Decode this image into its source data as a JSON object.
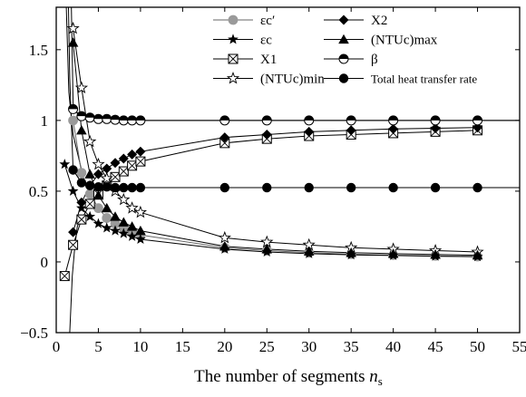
{
  "chart_data": {
    "type": "line",
    "xlabel": "The number of segments ",
    "xlabel_sub": "n",
    "xlabel_subscript": "s",
    "xlim": [
      0,
      55
    ],
    "ylim": [
      -0.5,
      1.8
    ],
    "xticks": [
      0,
      5,
      10,
      15,
      20,
      25,
      30,
      35,
      40,
      45,
      50,
      55
    ],
    "yticks": [
      -0.5,
      0,
      0.5,
      1,
      1.5
    ],
    "ytick_labels": [
      "−0.5",
      "0",
      "0.5",
      "1",
      "1.5"
    ],
    "grid": false,
    "legend_position": "top-right",
    "series": [
      {
        "name": "εc′",
        "marker": "circle-gray",
        "color": "#999999",
        "x": [
          2,
          3,
          4,
          5,
          6,
          7,
          8,
          9,
          10,
          20,
          25,
          30,
          35,
          40,
          45,
          50
        ],
        "y": [
          1.0,
          0.63,
          0.48,
          0.38,
          0.31,
          0.27,
          0.24,
          0.21,
          0.19,
          0.1,
          0.08,
          0.065,
          0.055,
          0.048,
          0.043,
          0.038
        ]
      },
      {
        "name": "εc",
        "marker": "star-filled",
        "color": "#000000",
        "x": [
          1,
          2,
          3,
          4,
          5,
          6,
          7,
          8,
          9,
          10,
          20,
          25,
          30,
          35,
          40,
          45,
          50
        ],
        "y": [
          0.69,
          0.5,
          0.38,
          0.32,
          0.27,
          0.24,
          0.22,
          0.2,
          0.18,
          0.16,
          0.09,
          0.07,
          0.058,
          0.05,
          0.045,
          0.04,
          0.037
        ]
      },
      {
        "name": "X1",
        "marker": "square-cross",
        "color": "#000000",
        "x": [
          1,
          2,
          3,
          4,
          5,
          6,
          7,
          8,
          9,
          10,
          20,
          25,
          30,
          35,
          40,
          45,
          50
        ],
        "y": [
          -0.1,
          0.12,
          0.3,
          0.41,
          0.48,
          0.54,
          0.6,
          0.64,
          0.68,
          0.71,
          0.84,
          0.87,
          0.89,
          0.9,
          0.91,
          0.92,
          0.93
        ]
      },
      {
        "name": "(NTUc)min",
        "marker": "star-open",
        "color": "#000000",
        "x": [
          2,
          3,
          4,
          5,
          6,
          7,
          8,
          9,
          10,
          20,
          25,
          30,
          35,
          40,
          45,
          50
        ],
        "y": [
          1.65,
          1.23,
          0.85,
          0.69,
          0.59,
          0.5,
          0.44,
          0.38,
          0.35,
          0.17,
          0.14,
          0.12,
          0.1,
          0.09,
          0.08,
          0.07
        ]
      },
      {
        "name": "X2",
        "marker": "diamond-filled",
        "color": "#000000",
        "x": [
          2,
          3,
          4,
          5,
          6,
          7,
          8,
          9,
          10,
          20,
          25,
          30,
          35,
          40,
          45,
          50
        ],
        "y": [
          0.21,
          0.42,
          0.54,
          0.62,
          0.66,
          0.7,
          0.73,
          0.76,
          0.78,
          0.88,
          0.9,
          0.92,
          0.93,
          0.94,
          0.945,
          0.95
        ]
      },
      {
        "name": "(NTUc)max",
        "marker": "triangle-filled",
        "color": "#000000",
        "x": [
          2,
          3,
          4,
          5,
          6,
          7,
          8,
          9,
          10,
          20,
          25,
          30,
          35,
          40,
          45,
          50
        ],
        "y": [
          1.55,
          0.93,
          0.62,
          0.47,
          0.38,
          0.32,
          0.28,
          0.25,
          0.22,
          0.11,
          0.09,
          0.075,
          0.065,
          0.058,
          0.052,
          0.047
        ]
      },
      {
        "name": "β",
        "marker": "circle-half",
        "color": "#000000",
        "x": [
          2,
          3,
          4,
          5,
          6,
          7,
          8,
          9,
          10,
          20,
          25,
          30,
          35,
          40,
          45,
          50
        ],
        "y": [
          1.08,
          1.03,
          1.02,
          1.01,
          1.01,
          1.005,
          1.0,
          1.0,
          1.0,
          1.0,
          1.0,
          1.0,
          1.0,
          1.0,
          1.0,
          1.0
        ]
      },
      {
        "name": "Total heat transfer rate",
        "marker": "circle-filled",
        "color": "#000000",
        "x": [
          2,
          3,
          4,
          5,
          6,
          7,
          8,
          9,
          10,
          20,
          25,
          30,
          35,
          40,
          45,
          50
        ],
        "y": [
          0.65,
          0.56,
          0.54,
          0.53,
          0.53,
          0.525,
          0.525,
          0.525,
          0.525,
          0.525,
          0.525,
          0.525,
          0.525,
          0.525,
          0.525,
          0.525
        ]
      }
    ],
    "curves": [
      {
        "name": "β curve",
        "x": [
          1.8,
          2,
          2.5,
          3,
          4,
          6,
          10,
          20,
          55
        ],
        "y": [
          1.8,
          1.12,
          1.05,
          1.02,
          1.01,
          1.005,
          1.0,
          1.0,
          1.0
        ]
      },
      {
        "name": "total rate curve",
        "x": [
          1.45,
          1.6,
          2,
          3,
          5,
          10,
          55
        ],
        "y": [
          1.8,
          1.3,
          0.65,
          0.56,
          0.535,
          0.525,
          0.525
        ]
      },
      {
        "name": "X1 upper branch",
        "x": [
          1.2,
          1.5,
          2,
          3
        ],
        "y": [
          1.8,
          1.2,
          0.9,
          0.65
        ]
      },
      {
        "name": "X1 lower branch",
        "x": [
          1.6,
          1.9,
          2.2,
          2.5,
          3
        ],
        "y": [
          -0.5,
          -0.1,
          0.1,
          0.25,
          0.32
        ]
      }
    ],
    "legend": {
      "left_column": [
        {
          "series": 0,
          "label": "εc′"
        },
        {
          "series": 1,
          "label": "εc"
        },
        {
          "series": 2,
          "label": "X1"
        },
        {
          "series": 3,
          "label": "(NTUc)min"
        }
      ],
      "right_column": [
        {
          "series": 4,
          "label": "X2"
        },
        {
          "series": 5,
          "label": "(NTUc)max"
        },
        {
          "series": 6,
          "label": "β"
        },
        {
          "series": 7,
          "label": "Total heat transfer rate"
        }
      ]
    }
  }
}
